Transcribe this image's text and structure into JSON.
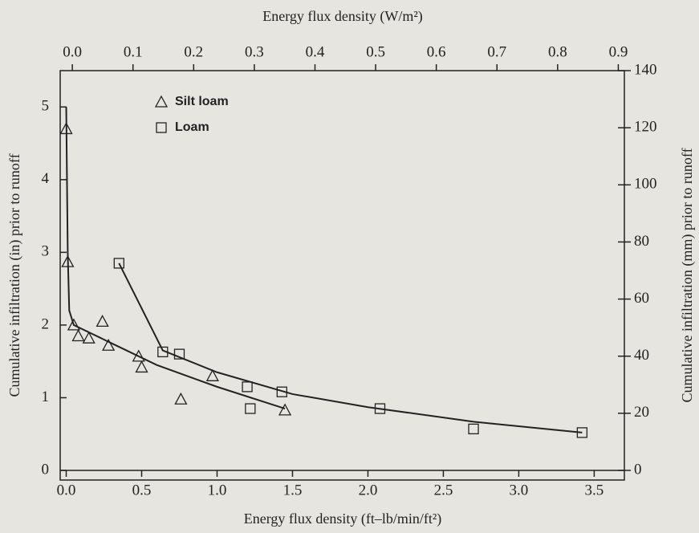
{
  "chart_data": {
    "type": "scatter",
    "title": "Energy flux density (W/m²)",
    "xlabel": "Energy flux density (ft–lb/min/ft²)",
    "ylabel": "Cumulative infiltration (in) prior to runoff",
    "y2label": "Cumulative infiltration (mm) prior to runoff",
    "xlim": [
      -0.04,
      3.7
    ],
    "xticks": [
      {
        "value": 0,
        "label": "0.0"
      },
      {
        "value": 0.5,
        "label": "0.5"
      },
      {
        "value": 1,
        "label": "1.0"
      },
      {
        "value": 1.5,
        "label": "1.5"
      },
      {
        "value": 2,
        "label": "2.0"
      },
      {
        "value": 2.5,
        "label": "2.5"
      },
      {
        "value": 3,
        "label": "3.0"
      },
      {
        "value": 3.5,
        "label": "3.5"
      }
    ],
    "x2lim": [
      -0.02,
      0.91
    ],
    "x2ticks": [
      {
        "value": 0,
        "label": "0.0"
      },
      0.1,
      0.2,
      0.3,
      0.4,
      0.5,
      0.6,
      0.7,
      0.8,
      0.9
    ],
    "ylim": [
      0,
      5.5
    ],
    "yticks": [
      0,
      1,
      2,
      3,
      4,
      5
    ],
    "y2lim": [
      0,
      140
    ],
    "y2ticks": [
      0,
      20,
      40,
      60,
      80,
      100,
      120,
      140
    ],
    "legend": "upper left",
    "series": [
      {
        "name": "Silt loam",
        "marker": "triangle",
        "color": "#222",
        "x": [
          0,
          0.01,
          0.05,
          0.08,
          0.15,
          0.24,
          0.28,
          0.48,
          0.5,
          0.76,
          0.97,
          1.45
        ],
        "values": [
          4.7,
          2.87,
          2.0,
          1.85,
          1.82,
          2.05,
          1.72,
          1.57,
          1.42,
          0.98,
          1.3,
          0.83
        ],
        "curve": {
          "x": [
            0,
            0.01,
            0.02,
            0.05,
            0.3,
            0.6,
            1.0,
            1.45
          ],
          "values": [
            5.0,
            3.0,
            2.2,
            2.0,
            1.75,
            1.45,
            1.15,
            0.85
          ]
        }
      },
      {
        "name": "Loam",
        "marker": "square",
        "color": "#222",
        "x": [
          0.35,
          0.64,
          0.75,
          1.2,
          1.22,
          1.43,
          2.08,
          2.7,
          3.42
        ],
        "values": [
          2.85,
          1.63,
          1.6,
          1.15,
          0.85,
          1.08,
          0.85,
          0.57,
          0.52
        ],
        "curve": {
          "x": [
            0.35,
            0.64,
            1.0,
            1.5,
            2.0,
            2.7,
            3.42
          ],
          "values": [
            2.85,
            1.65,
            1.35,
            1.05,
            0.87,
            0.67,
            0.52
          ]
        }
      }
    ]
  }
}
